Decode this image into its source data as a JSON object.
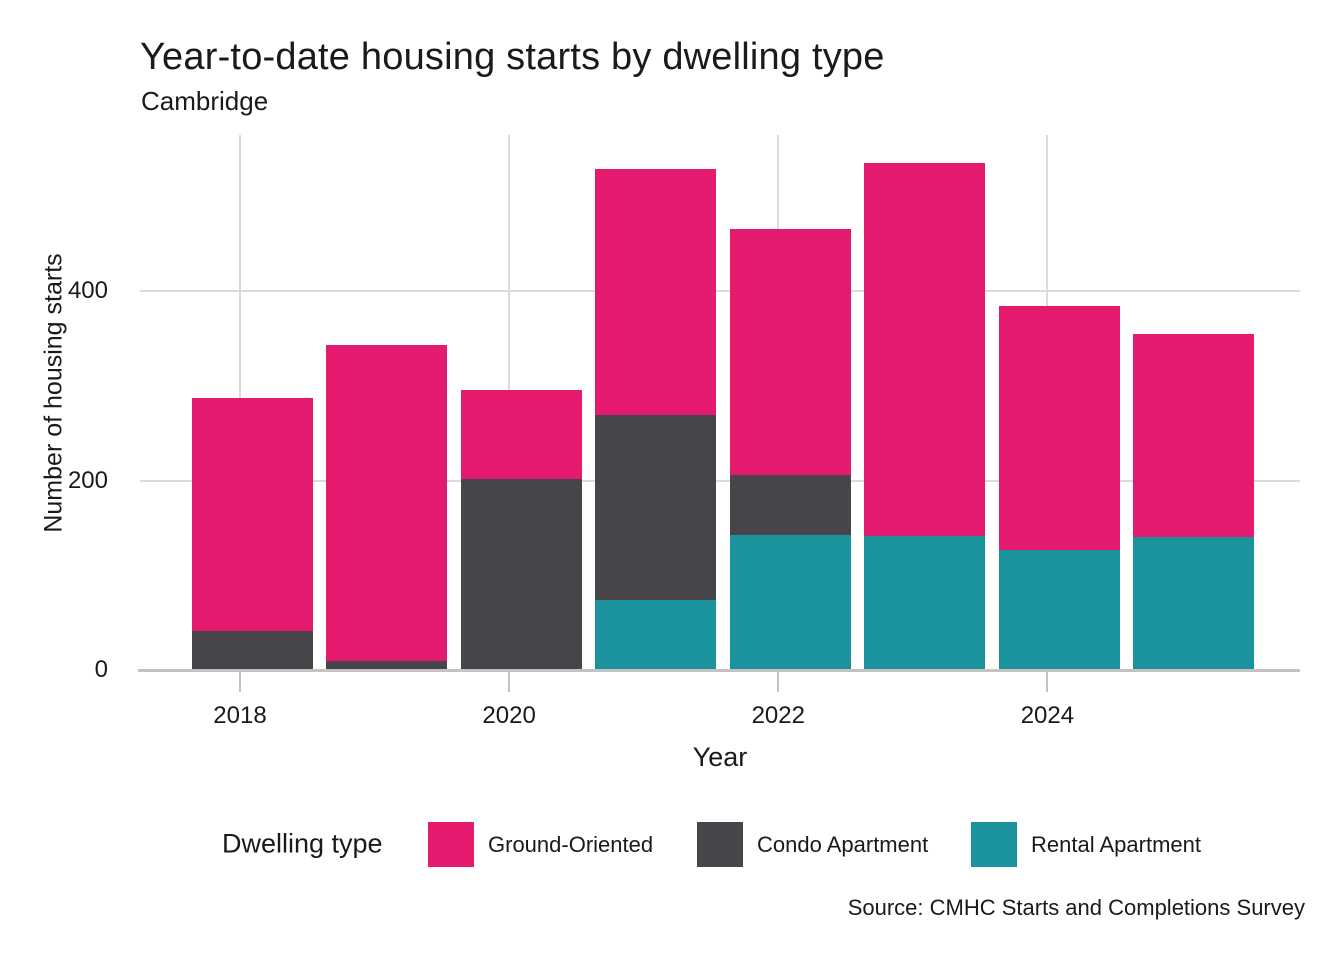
{
  "chart_data": {
    "type": "bar",
    "stacked": true,
    "title": "Year-to-date housing starts by dwelling type",
    "subtitle": "Cambridge",
    "xlabel": "Year",
    "ylabel": "Number of housing starts",
    "source": "Source: CMHC Starts and Completions Survey",
    "legend_title": "Dwelling type",
    "legend_position": "bottom",
    "categories": [
      2018,
      2019,
      2020,
      2021,
      2022,
      2023,
      2024,
      2025
    ],
    "x_tick_labels": [
      "2018",
      "2020",
      "2022",
      "2024"
    ],
    "x_tick_years": [
      2018,
      2020,
      2022,
      2024
    ],
    "y_ticks": [
      0,
      200,
      400
    ],
    "ylim": [
      0,
      560
    ],
    "grid": "major",
    "series": [
      {
        "name": "Ground-Oriented",
        "color": "#E31A6E",
        "values": [
          246,
          334,
          93,
          260,
          259,
          394,
          257,
          215
        ]
      },
      {
        "name": "Condo Apartment",
        "color": "#48454A",
        "values": [
          41,
          9,
          202,
          195,
          64,
          0,
          0,
          0
        ]
      },
      {
        "name": "Rental Apartment",
        "color": "#1B939D",
        "values": [
          0,
          0,
          0,
          74,
          142,
          141,
          127,
          140
        ]
      }
    ],
    "stack_order_bottom_to_top": [
      "Rental Apartment",
      "Condo Apartment",
      "Ground-Oriented"
    ],
    "totals": [
      287,
      343,
      295,
      529,
      465,
      535,
      384,
      355
    ],
    "colors": {
      "grid": "#DBDBDB",
      "axis_line": "#C3C3C3",
      "text": "#1A1A1A",
      "background": "#FFFFFF"
    }
  }
}
